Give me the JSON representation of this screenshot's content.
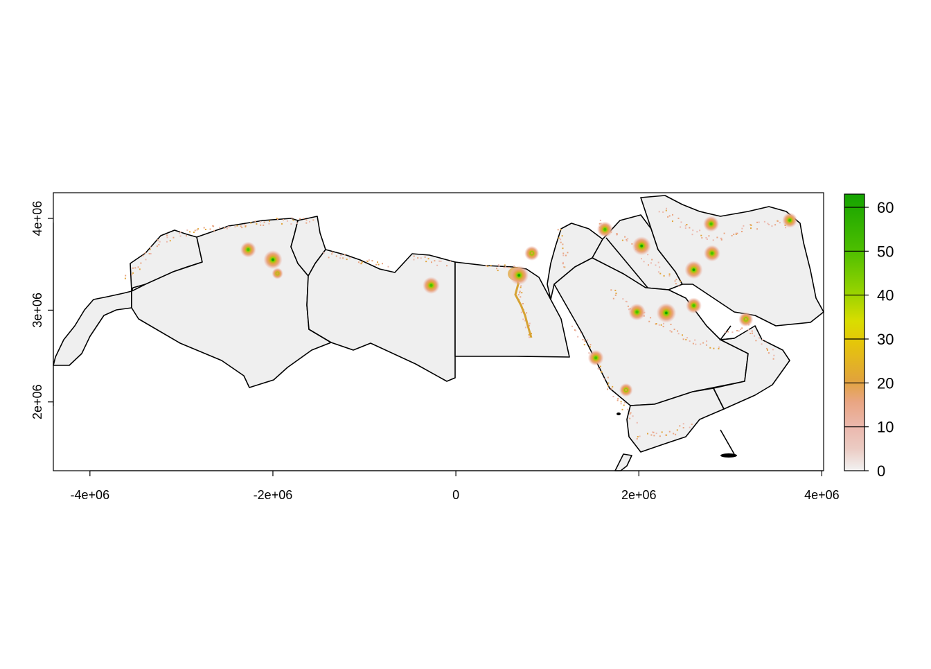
{
  "chart_data": {
    "type": "heatmap",
    "title": "",
    "xlabel": "",
    "ylabel": "",
    "xlim": [
      -4400000,
      4020000
    ],
    "ylim": [
      1250000,
      4280000
    ],
    "x_ticks": [
      {
        "value": -4000000,
        "label": "-4e+06"
      },
      {
        "value": -2000000,
        "label": "-2e+06"
      },
      {
        "value": 0,
        "label": "0"
      },
      {
        "value": 2000000,
        "label": "2e+06"
      },
      {
        "value": 4000000,
        "label": "4e+06"
      }
    ],
    "y_ticks": [
      {
        "value": 2000000,
        "label": "2e+06"
      },
      {
        "value": 3000000,
        "label": "3e+06"
      },
      {
        "value": 4000000,
        "label": "4e+06"
      }
    ],
    "legend": {
      "placement": "right",
      "min": 0,
      "max": 63,
      "ticks": [
        0,
        10,
        20,
        30,
        40,
        50,
        60
      ],
      "colors": {
        "low": "#f2f2f2",
        "c5": "#ebb8ad",
        "c10": "#e9a582",
        "c20": "#e1a43a",
        "c30": "#e6d500",
        "c40": "#8fd100",
        "c50": "#4cbe00",
        "high": "#14a300"
      }
    },
    "background_color": "#efefef",
    "border_color": "#000000",
    "hotspots": [
      {
        "x": -2000000,
        "y": 3550000,
        "value": 58
      },
      {
        "x": -2270000,
        "y": 3660000,
        "value": 45
      },
      {
        "x": -1950000,
        "y": 3400000,
        "value": 25
      },
      {
        "x": -270000,
        "y": 3270000,
        "value": 50
      },
      {
        "x": 690000,
        "y": 3380000,
        "value": 60
      },
      {
        "x": 830000,
        "y": 3620000,
        "value": 40
      },
      {
        "x": 1630000,
        "y": 3880000,
        "value": 45
      },
      {
        "x": 2030000,
        "y": 3700000,
        "value": 58
      },
      {
        "x": 2300000,
        "y": 2970000,
        "value": 62
      },
      {
        "x": 1980000,
        "y": 2980000,
        "value": 50
      },
      {
        "x": 2600000,
        "y": 3440000,
        "value": 55
      },
      {
        "x": 2800000,
        "y": 3620000,
        "value": 48
      },
      {
        "x": 2790000,
        "y": 3940000,
        "value": 45
      },
      {
        "x": 3650000,
        "y": 3980000,
        "value": 42
      },
      {
        "x": 1530000,
        "y": 2480000,
        "value": 45
      },
      {
        "x": 1860000,
        "y": 2130000,
        "value": 35
      },
      {
        "x": 2600000,
        "y": 3050000,
        "value": 45
      },
      {
        "x": 3170000,
        "y": 2900000,
        "value": 40
      }
    ]
  }
}
